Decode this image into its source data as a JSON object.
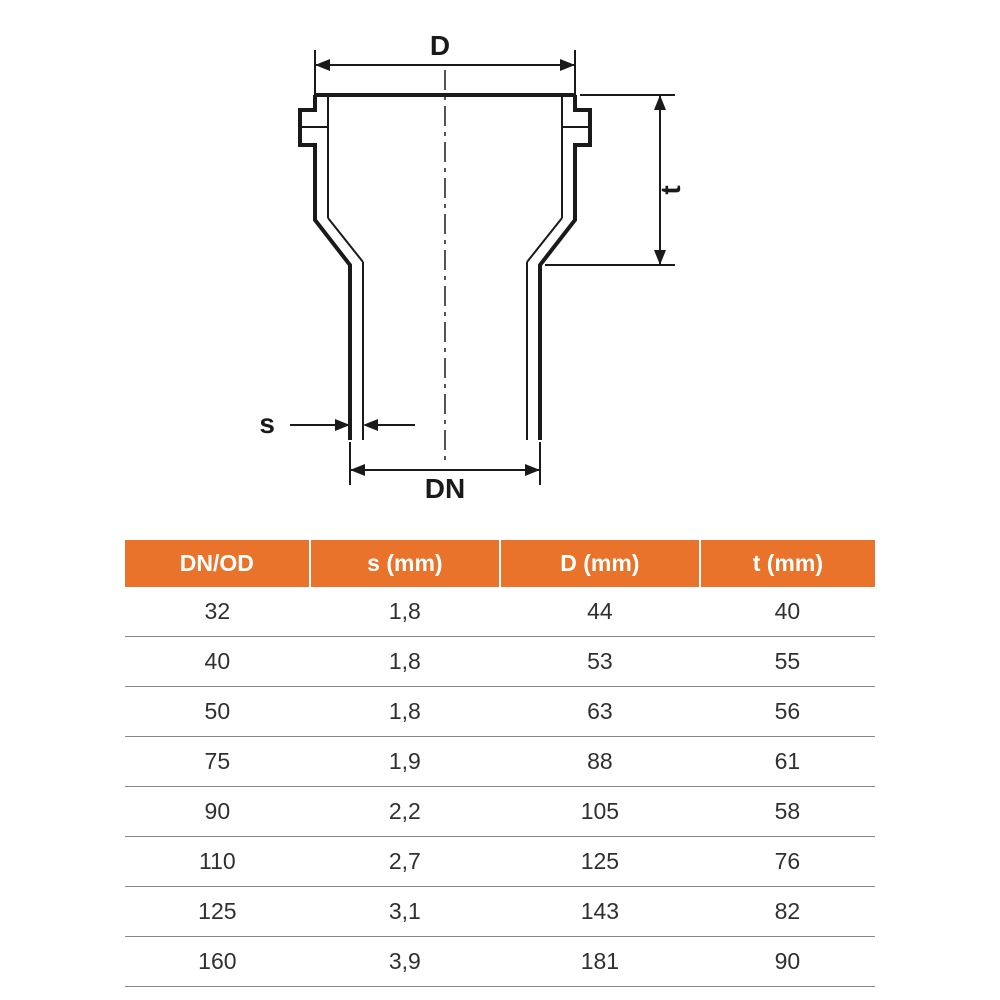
{
  "diagram": {
    "labels": {
      "D": "D",
      "t": "t",
      "s": "s",
      "DN": "DN"
    },
    "colors": {
      "line": "#1a1a1a",
      "thick_stroke": 4,
      "thin_stroke": 2,
      "dash_stroke": 1.5
    }
  },
  "table": {
    "header_bg": "#e9732a",
    "header_fg": "#ffffff",
    "row_border": "#888888",
    "columns": [
      "DN/OD",
      "s (mm)",
      "D (mm)",
      "t (mm)"
    ],
    "rows": [
      [
        "32",
        "1,8",
        "44",
        "40"
      ],
      [
        "40",
        "1,8",
        "53",
        "55"
      ],
      [
        "50",
        "1,8",
        "63",
        "56"
      ],
      [
        "75",
        "1,9",
        "88",
        "61"
      ],
      [
        "90",
        "2,2",
        "105",
        "58"
      ],
      [
        "110",
        "2,7",
        "125",
        "76"
      ],
      [
        "125",
        "3,1",
        "143",
        "82"
      ],
      [
        "160",
        "3,9",
        "181",
        "90"
      ]
    ]
  }
}
